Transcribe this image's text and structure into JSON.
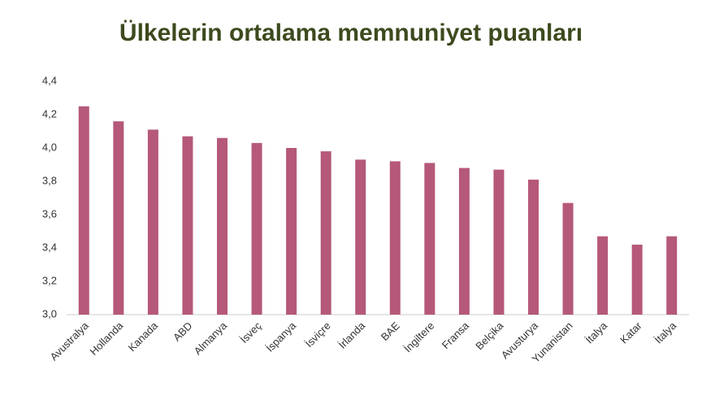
{
  "chart_data": {
    "type": "bar",
    "title": "Ülkelerin ortalama memnuniyet puanları",
    "categories": [
      "Avustralya",
      "Hollanda",
      "Kanada",
      "ABD",
      "Almanya",
      "İsveç",
      "İspanya",
      "İsviçre",
      "İrlanda",
      "BAE",
      "İngiltere",
      "Fransa",
      "Belçika",
      "Avusturya",
      "Yunanistan",
      "İtalya",
      "Katar",
      "İtalya"
    ],
    "values": [
      4.25,
      4.16,
      4.11,
      4.07,
      4.06,
      4.03,
      4.0,
      3.98,
      3.93,
      3.92,
      3.91,
      3.88,
      3.87,
      3.81,
      3.67,
      3.47,
      3.42,
      3.47
    ],
    "color": "#b5587a",
    "ylim": [
      3.0,
      4.4
    ],
    "yticks": [
      {
        "value": 3.0,
        "label": "3,0"
      },
      {
        "value": 3.2,
        "label": "3,2"
      },
      {
        "value": 3.4,
        "label": "3,4"
      },
      {
        "value": 3.6,
        "label": "3,6"
      },
      {
        "value": 3.8,
        "label": "3,8"
      },
      {
        "value": 4.0,
        "label": "4,0"
      },
      {
        "value": 4.2,
        "label": "4,2"
      },
      {
        "value": 4.4,
        "label": "4,4"
      }
    ],
    "grid": false
  }
}
